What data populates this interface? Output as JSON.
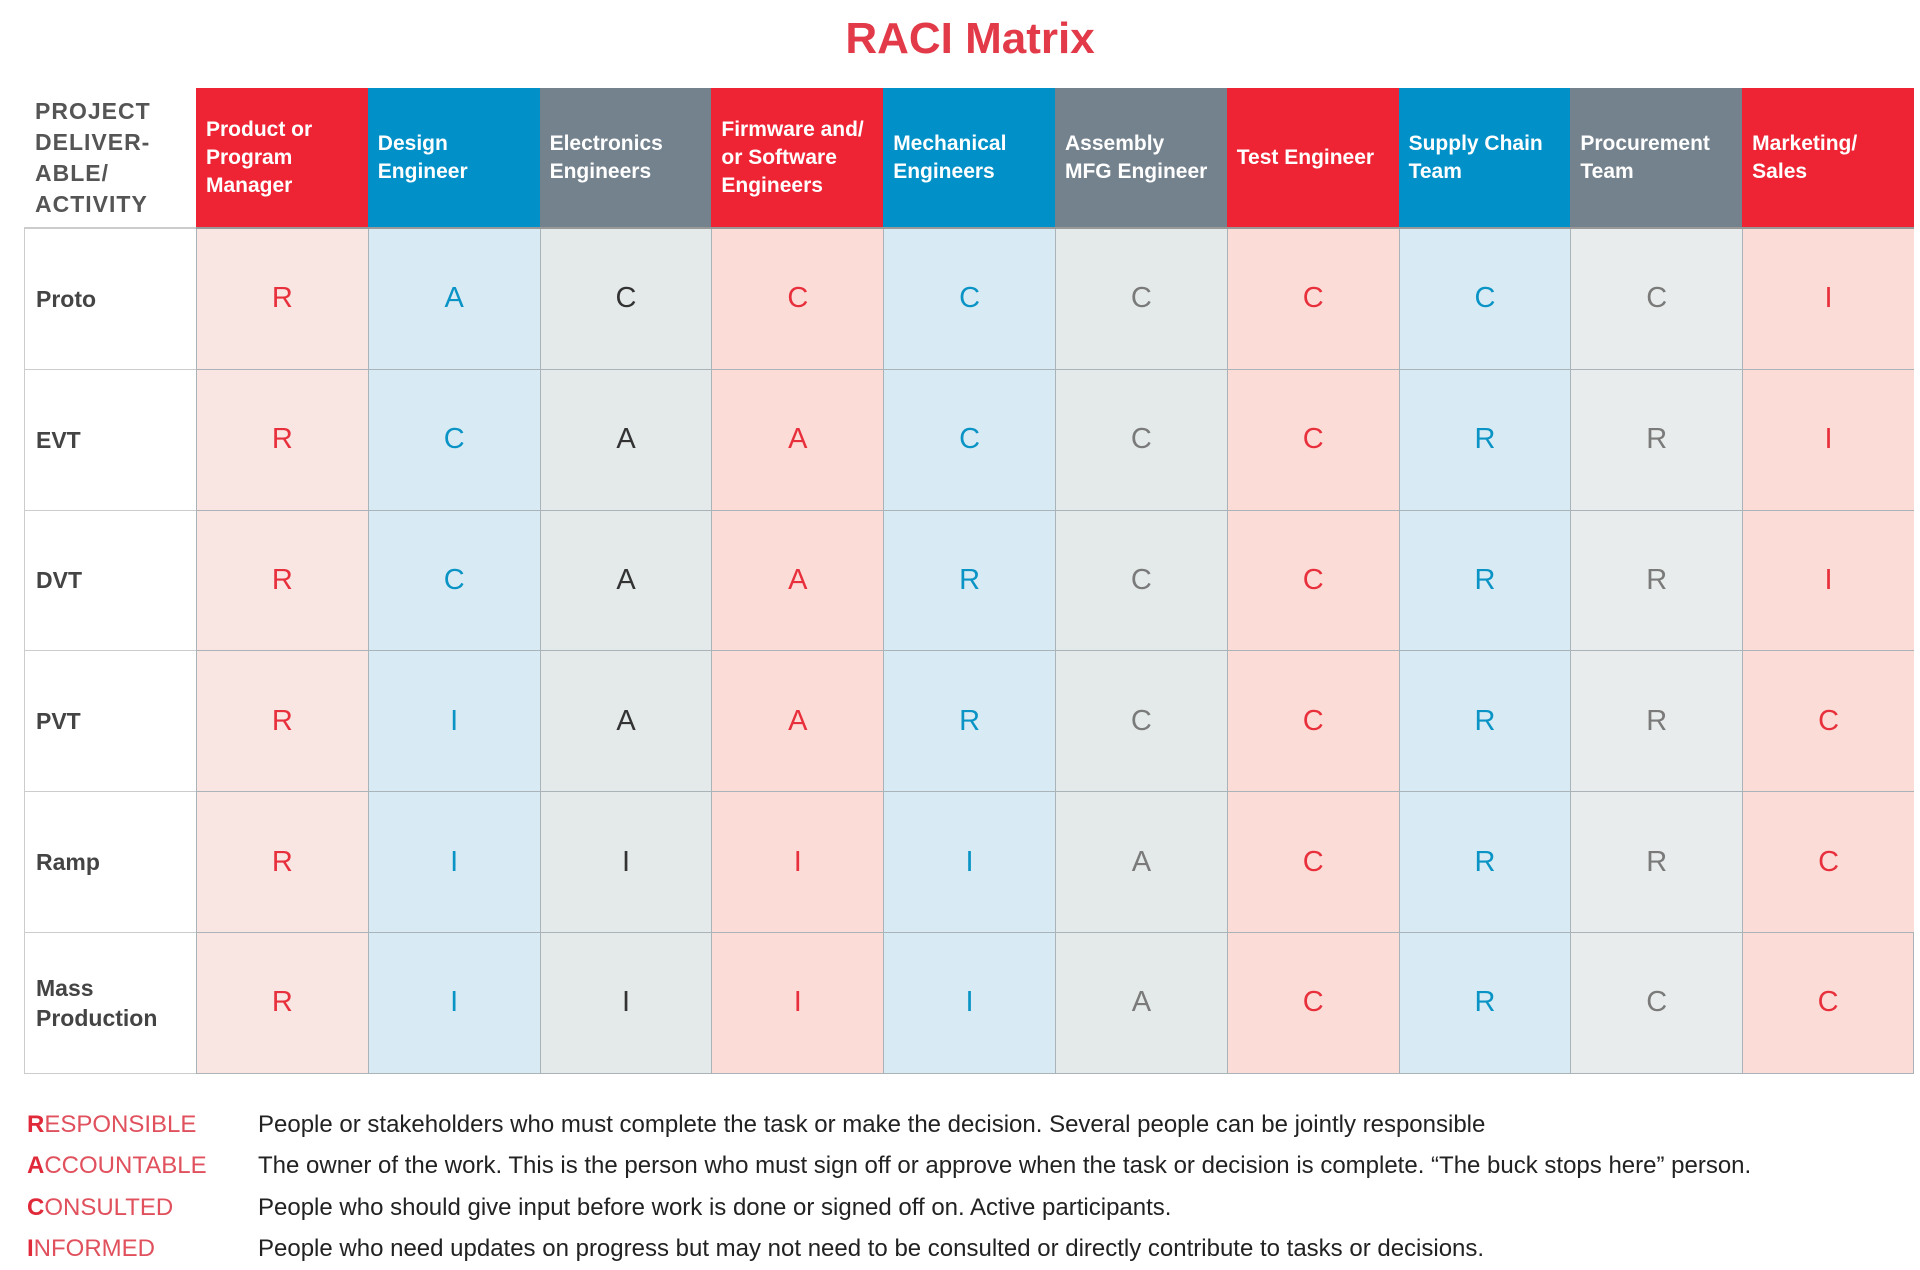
{
  "title": "RACI Matrix",
  "corner_label": "PROJECT\nDELIVER-\nABLE/\nACTIVITY",
  "columns": [
    {
      "label": "Product or\nProgram\nManager",
      "color": "#ee2435",
      "bg": "#f9e5e2",
      "text": "#e8303d"
    },
    {
      "label": "Design\nEngineer",
      "color": "#0191c8",
      "bg": "#d8eaf3",
      "text": "#0a94c6"
    },
    {
      "label": "Electronics\nEngineers",
      "color": "#74828e",
      "bg": "#e4eaea",
      "text": "#333333"
    },
    {
      "label": "Firmware and/\nor Software\nEngineers",
      "color": "#ee2435",
      "bg": "#fcdcd6",
      "text": "#e8303d"
    },
    {
      "label": "Mechanical\nEngineers",
      "color": "#0191c8",
      "bg": "#d8eaf3",
      "text": "#0a94c6"
    },
    {
      "label": "Assembly\nMFG Engineer",
      "color": "#74828e",
      "bg": "#e4eaea",
      "text": "#7a7a7a"
    },
    {
      "label": "Test Engineer",
      "color": "#ee2435",
      "bg": "#fcdcd6",
      "text": "#e8303d"
    },
    {
      "label": "Supply Chain\nTeam",
      "color": "#0191c8",
      "bg": "#d8eaf3",
      "text": "#0a94c6"
    },
    {
      "label": "Procurement\nTeam",
      "color": "#74828e",
      "bg": "#e9ecec",
      "text": "#7a7a7a"
    },
    {
      "label": "Marketing/\nSales",
      "color": "#ee2435",
      "bg": "#fcdcd6",
      "text": "#e8303d"
    }
  ],
  "rows": [
    {
      "label": "Proto",
      "values": [
        "R",
        "A",
        "C",
        "C",
        "C",
        "C",
        "C",
        "C",
        "C",
        "I"
      ]
    },
    {
      "label": "EVT",
      "values": [
        "R",
        "C",
        "A",
        "A",
        "C",
        "C",
        "C",
        "R",
        "R",
        "I"
      ]
    },
    {
      "label": "DVT",
      "values": [
        "R",
        "C",
        "A",
        "A",
        "R",
        "C",
        "C",
        "R",
        "R",
        "I"
      ]
    },
    {
      "label": "PVT",
      "values": [
        "R",
        "I",
        "A",
        "A",
        "R",
        "C",
        "C",
        "R",
        "R",
        "C"
      ]
    },
    {
      "label": "Ramp",
      "values": [
        "R",
        "I",
        "I",
        "I",
        "I",
        "A",
        "C",
        "R",
        "R",
        "C"
      ]
    },
    {
      "label": "Mass\nProduction",
      "values": [
        "R",
        "I",
        "I",
        "I",
        "I",
        "A",
        "C",
        "R",
        "C",
        "C"
      ]
    }
  ],
  "legend": [
    {
      "initial": "R",
      "rest": "ESPONSIBLE",
      "description": "People or stakeholders who must complete the task or make the decision. Several people can be jointly responsible"
    },
    {
      "initial": "A",
      "rest": "CCOUNTABLE",
      "description": "The owner of the work. This is the person who must sign off or approve when the task or decision is complete. “The buck stops here” person."
    },
    {
      "initial": "C",
      "rest": "ONSULTED",
      "description": "People who should give input before work is done or signed off on. Active participants."
    },
    {
      "initial": "I",
      "rest": "NFORMED",
      "description": "People who need updates on progress but may not need to be consulted or directly contribute to tasks or decisions."
    }
  ]
}
